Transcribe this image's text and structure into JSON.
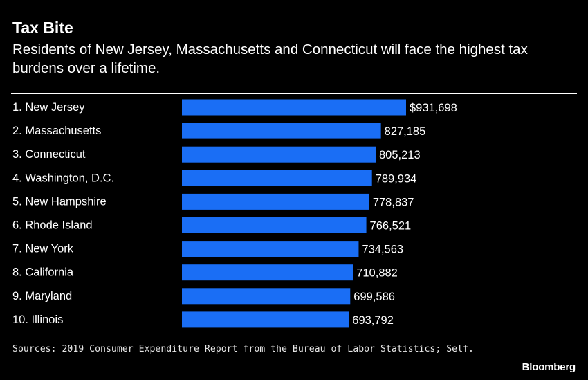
{
  "header": {
    "title": "Tax Bite",
    "subtitle": "Residents of New Jersey, Massachusetts and Connecticut will face the highest tax burdens over a lifetime."
  },
  "footer": {
    "sources": "Sources: 2019 Consumer Expenditure Report from the Bureau of Labor Statistics; Self.",
    "brand": "Bloomberg"
  },
  "colors": {
    "background": "#000000",
    "bar": "#1a6ef5",
    "text": "#ffffff"
  },
  "chart_data": {
    "type": "bar",
    "orientation": "horizontal",
    "title": "Tax Bite",
    "subtitle": "Residents of New Jersey, Massachusetts and Connecticut will face the highest tax burdens over a lifetime.",
    "xlabel": "",
    "ylabel": "",
    "grid": false,
    "legend": "none",
    "categories": [
      "1. New Jersey",
      "2. Massachusetts",
      "3. Connecticut",
      "4. Washington, D.C.",
      "5. New Hampshire",
      "6. Rhode Island",
      "7. New York",
      "8. California",
      "9. Maryland",
      "10. Illinois"
    ],
    "values": [
      931698,
      827185,
      805213,
      789934,
      778837,
      766521,
      734563,
      710882,
      699586,
      693792
    ],
    "value_labels": [
      "$931,698",
      "827,185",
      "805,213",
      "789,934",
      "778,837",
      "766,521",
      "734,563",
      "710,882",
      "699,586",
      "693,792"
    ],
    "xlim": [
      0,
      931698
    ]
  }
}
